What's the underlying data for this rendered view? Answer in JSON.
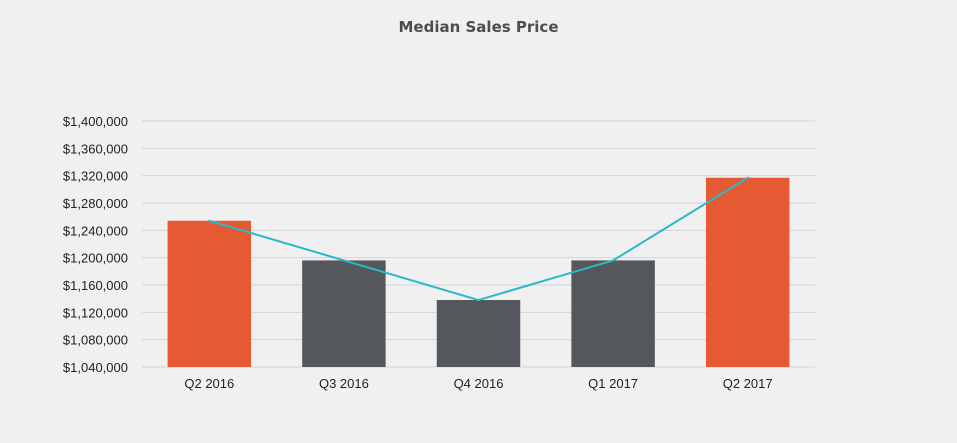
{
  "chart_data": {
    "type": "bar",
    "title": "Median Sales Price",
    "xlabel": "",
    "ylabel": "",
    "categories": [
      "Q2 2016",
      "Q3 2016",
      "Q4 2016",
      "Q1 2017",
      "Q2 2017"
    ],
    "values": [
      1254000,
      1196000,
      1138000,
      1196000,
      1317000
    ],
    "line_values": [
      1254000,
      1196000,
      1138000,
      1196000,
      1317000
    ],
    "ylim": [
      1040000,
      1400000
    ],
    "y_ticks": [
      "$1,040,000",
      "$1,080,000",
      "$1,120,000",
      "$1,160,000",
      "$1,200,000",
      "$1,240,000",
      "$1,280,000",
      "$1,320,000",
      "$1,360,000",
      "$1,400,000"
    ],
    "y_tick_values": [
      1040000,
      1080000,
      1120000,
      1160000,
      1200000,
      1240000,
      1280000,
      1320000,
      1360000,
      1400000
    ],
    "bar_colors": [
      "#e55a33",
      "#54575b",
      "#54575b",
      "#54575b",
      "#e55a33"
    ],
    "line_color": "#2cb8c6",
    "grid": true,
    "grid_color": "#d4d4d4",
    "legend": "none"
  }
}
